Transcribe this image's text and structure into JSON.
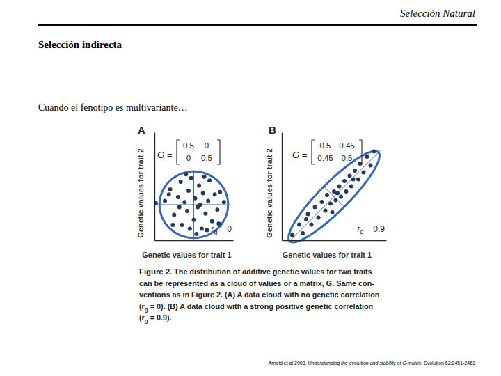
{
  "header": {
    "title": "Selección Natural"
  },
  "heading": "Selección indirecta",
  "intro": "Cuando el fenotipo es multivariante…",
  "chart_data": [
    {
      "type": "scatter",
      "title": "A",
      "xlabel": "Genetic values for trait 1",
      "ylabel": "Genetic values for trait 2",
      "x": [
        -2.2,
        -1.8,
        -1.5,
        -1.2,
        -1.0,
        -0.9,
        -0.7,
        -0.5,
        -0.4,
        -0.2,
        0,
        0.1,
        0.3,
        0.4,
        0.6,
        0.7,
        0.9,
        1.1,
        1.2,
        1.4,
        1.6,
        1.8,
        2.0,
        -1.6,
        -2.9,
        0.2,
        -0.3,
        1.0,
        -1.1,
        0.8,
        -0.6,
        1.9,
        0.5,
        -1.9,
        2.3
      ],
      "y": [
        0.3,
        1.2,
        -0.8,
        0.6,
        1.8,
        -1.6,
        0.2,
        -0.5,
        1.1,
        2.1,
        -1.2,
        0.5,
        -0.2,
        1.5,
        -1.9,
        0.9,
        -0.7,
        0.3,
        1.9,
        -1.3,
        0.8,
        -0.4,
        1.0,
        -1.6,
        0.1,
        -2.3,
        -1.9,
        -2.0,
        -0.2,
        2.2,
        2.4,
        -1.5,
        0.0,
        0.8,
        0.2
      ],
      "xlim": [
        -3,
        3
      ],
      "ylim": [
        -2.8,
        5.7
      ],
      "xticks": [],
      "yticks": [],
      "tick_labels": false,
      "marker": "circle",
      "color": "#26365e",
      "annotations": {
        "matrix_label": "G =",
        "matrix": [
          [
            0.5,
            0
          ],
          [
            0,
            0.5
          ]
        ],
        "correlation_label": [
          "r",
          {
            "sub": "g"
          },
          " = "
        ],
        "correlation": 0
      }
    },
    {
      "type": "scatter",
      "title": "B",
      "xlabel": "Genetic values for trait 1",
      "ylabel": "Genetic values for trait 2",
      "x": [
        -2.4,
        -2.0,
        -1.8,
        -1.5,
        -1.3,
        -1.1,
        -0.9,
        -0.7,
        -0.5,
        -0.4,
        -0.2,
        0,
        0.1,
        0.3,
        0.4,
        0.6,
        0.7,
        0.9,
        1.0,
        1.2,
        1.4,
        1.5,
        1.7,
        1.9,
        2.1,
        2.3,
        -1.6,
        0.2,
        -0.1,
        1.1
      ],
      "y": [
        -2.2,
        -1.6,
        -2.1,
        -1.0,
        -1.6,
        -0.6,
        -1.2,
        -0.3,
        -0.8,
        0.1,
        -0.4,
        0.3,
        -0.2,
        0.6,
        0.0,
        0.9,
        0.3,
        1.2,
        0.6,
        1.5,
        1.0,
        1.9,
        1.4,
        2.3,
        1.8,
        2.6,
        -1.3,
        0.2,
        -0.9,
        1.0
      ],
      "xlim": [
        -3,
        3
      ],
      "ylim": [
        -2.5,
        3.7
      ],
      "xticks": [],
      "yticks": [],
      "tick_labels": false,
      "marker": "circle",
      "color": "#26365e",
      "annotations": {
        "matrix_label": "G =",
        "matrix": [
          [
            0.5,
            0.45
          ],
          [
            0.45,
            0.5
          ]
        ],
        "correlation_label": [
          "r",
          {
            "sub": "g"
          },
          " = "
        ],
        "correlation": 0.9
      }
    }
  ],
  "caption": {
    "lines": [
      [
        {
          "bold": "Figure 2."
        },
        "  The distribution of additive genetic values for two traits"
      ],
      [
        "can be represented as a cloud of values or a matrix, G. Same con-"
      ],
      [
        "ventions as in Figure 2. (A) A data cloud with no genetic correlation"
      ],
      [
        "(r",
        {
          "sub": "g"
        },
        " = 0). (B) A data cloud with a strong positive genetic correlation"
      ],
      [
        "(r",
        {
          "sub": "g"
        },
        " = 0.9)."
      ]
    ]
  },
  "citation": [
    "Arnold et al 2008. ",
    {
      "italic": "Understanding the evolution and stability of G-matrix"
    },
    ". Evolution 62:2451-2461"
  ]
}
